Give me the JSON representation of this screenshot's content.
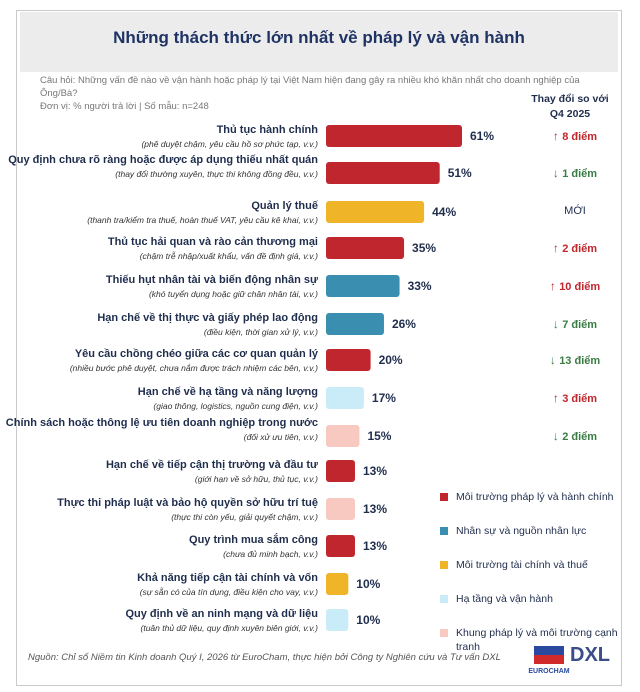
{
  "title": "Những thách thức lớn nhất về pháp lý và vận hành",
  "question": "Câu hỏi: Những vấn đề nào về vận hành hoặc pháp lý tại Việt Nam hiện đang gây ra nhiều khó khăn nhất cho doanh nghiệp của Ông/Bà?",
  "unit": "Đơn vị: % người trả lời | Số mẫu: n=248",
  "change_header": "Thay đổi so với Q4 2025",
  "source": "Nguồn: Chỉ số Niềm tin Kinh doanh Quý I, 2026 từ EuroCham, thực hiện bởi Công ty Nghiên cứu và Tư vấn DXL",
  "logos": {
    "eurocham": "EUROCHAM",
    "dxl": "DXL"
  },
  "colors": {
    "legal": "#c0262d",
    "hr": "#3a8fb0",
    "finance": "#f0b429",
    "infra": "#c9ecf8",
    "competition": "#f8c9c0"
  },
  "legend": [
    {
      "key": "legal",
      "label": "Môi trường pháp lý và hành chính"
    },
    {
      "key": "hr",
      "label": "Nhân sự và nguồn nhân lực"
    },
    {
      "key": "finance",
      "label": "Môi trường tài chính và thuế"
    },
    {
      "key": "infra",
      "label": "Hạ tầng và vận hành"
    },
    {
      "key": "competition",
      "label": "Khung pháp lý và môi trường cạnh tranh"
    }
  ],
  "chart_data": {
    "type": "bar",
    "orientation": "horizontal",
    "title": "Những thách thức lớn nhất về pháp lý và vận hành",
    "xlim": [
      0,
      61
    ],
    "categories": [
      {
        "title": "Thủ tục hành chính",
        "sub": "(phê duyệt chậm, yêu cầu hồ sơ phức tạp, v.v.)",
        "value": 61,
        "label": "61%",
        "group": "legal",
        "change_dir": "up",
        "change": "8 điểm"
      },
      {
        "title": "Quy định chưa rõ ràng hoặc được áp dụng thiếu nhất quán",
        "sub": "(thay đổi thường xuyên, thực thi không đồng đều, v.v.)",
        "value": 51,
        "label": "51%",
        "group": "legal",
        "change_dir": "down",
        "change": "1 điểm"
      },
      {
        "title": "Quản lý thuế",
        "sub": "(thanh tra/kiểm tra thuế, hoàn thuế VAT, yêu cầu kê khai, v.v.)",
        "value": 44,
        "label": "44%",
        "group": "finance",
        "change_dir": "new",
        "change": "MỚI"
      },
      {
        "title": "Thủ tục hải quan và rào cản thương mại",
        "sub": "(chậm trễ nhập/xuất khẩu, vấn đề định giá, v.v.)",
        "value": 35,
        "label": "35%",
        "group": "legal",
        "change_dir": "up",
        "change": "2 điểm"
      },
      {
        "title": "Thiếu hụt nhân tài và biến động nhân sự",
        "sub": "(khó tuyển dụng hoặc giữ chân nhân tài, v.v.)",
        "value": 33,
        "label": "33%",
        "group": "hr",
        "change_dir": "up",
        "change": "10 điểm"
      },
      {
        "title": "Hạn chế về thị thực và giấy phép lao động",
        "sub": "(điều kiện, thời gian xử lý, v.v.)",
        "value": 26,
        "label": "26%",
        "group": "hr",
        "change_dir": "down",
        "change": "7 điểm"
      },
      {
        "title": "Yêu cầu chồng chéo giữa các cơ quan quản lý",
        "sub": "(nhiều bước phê duyệt, chưa nắm được trách nhiệm các bên, v.v.)",
        "value": 20,
        "label": "20%",
        "group": "legal",
        "change_dir": "down",
        "change": "13 điểm"
      },
      {
        "title": "Hạn chế về hạ tầng và năng lượng",
        "sub": "(giao thông, logistics, nguồn cung điện, v.v.)",
        "value": 17,
        "label": "17%",
        "group": "infra",
        "change_dir": "up",
        "change": "3 điểm"
      },
      {
        "title": "Chính sách hoặc thông lệ ưu tiên doanh nghiệp trong nước",
        "sub": "(đối xử ưu tiên, v.v.)",
        "value": 15,
        "label": "15%",
        "group": "competition",
        "change_dir": "down",
        "change": "2 điểm"
      },
      {
        "title": "Hạn chế về tiếp cận thị trường và đầu tư",
        "sub": "(giới hạn về sở hữu, thủ tục, v.v.)",
        "value": 13,
        "label": "13%",
        "group": "legal",
        "change_dir": "none",
        "change": ""
      },
      {
        "title": "Thực thi pháp luật và bảo hộ quyền sở hữu trí tuệ",
        "sub": "(thực thi còn yếu, giải quyết chậm, v.v.)",
        "value": 13,
        "label": "13%",
        "group": "competition",
        "change_dir": "none",
        "change": ""
      },
      {
        "title": "Quy trình mua sắm công",
        "sub": "(chưa đủ minh bạch, v.v.)",
        "value": 13,
        "label": "13%",
        "group": "legal",
        "change_dir": "none",
        "change": ""
      },
      {
        "title": "Khả năng tiếp cận tài chính và vốn",
        "sub": "(sự sẵn có của tín dụng, điều kiện cho vay, v.v.)",
        "value": 10,
        "label": "10%",
        "group": "finance",
        "change_dir": "none",
        "change": ""
      },
      {
        "title": "Quy định về an ninh mạng và dữ liệu",
        "sub": "(tuân thủ dữ liệu, quy định xuyên biên giới, v.v.)",
        "value": 10,
        "label": "10%",
        "group": "infra",
        "change_dir": "none",
        "change": ""
      }
    ]
  }
}
